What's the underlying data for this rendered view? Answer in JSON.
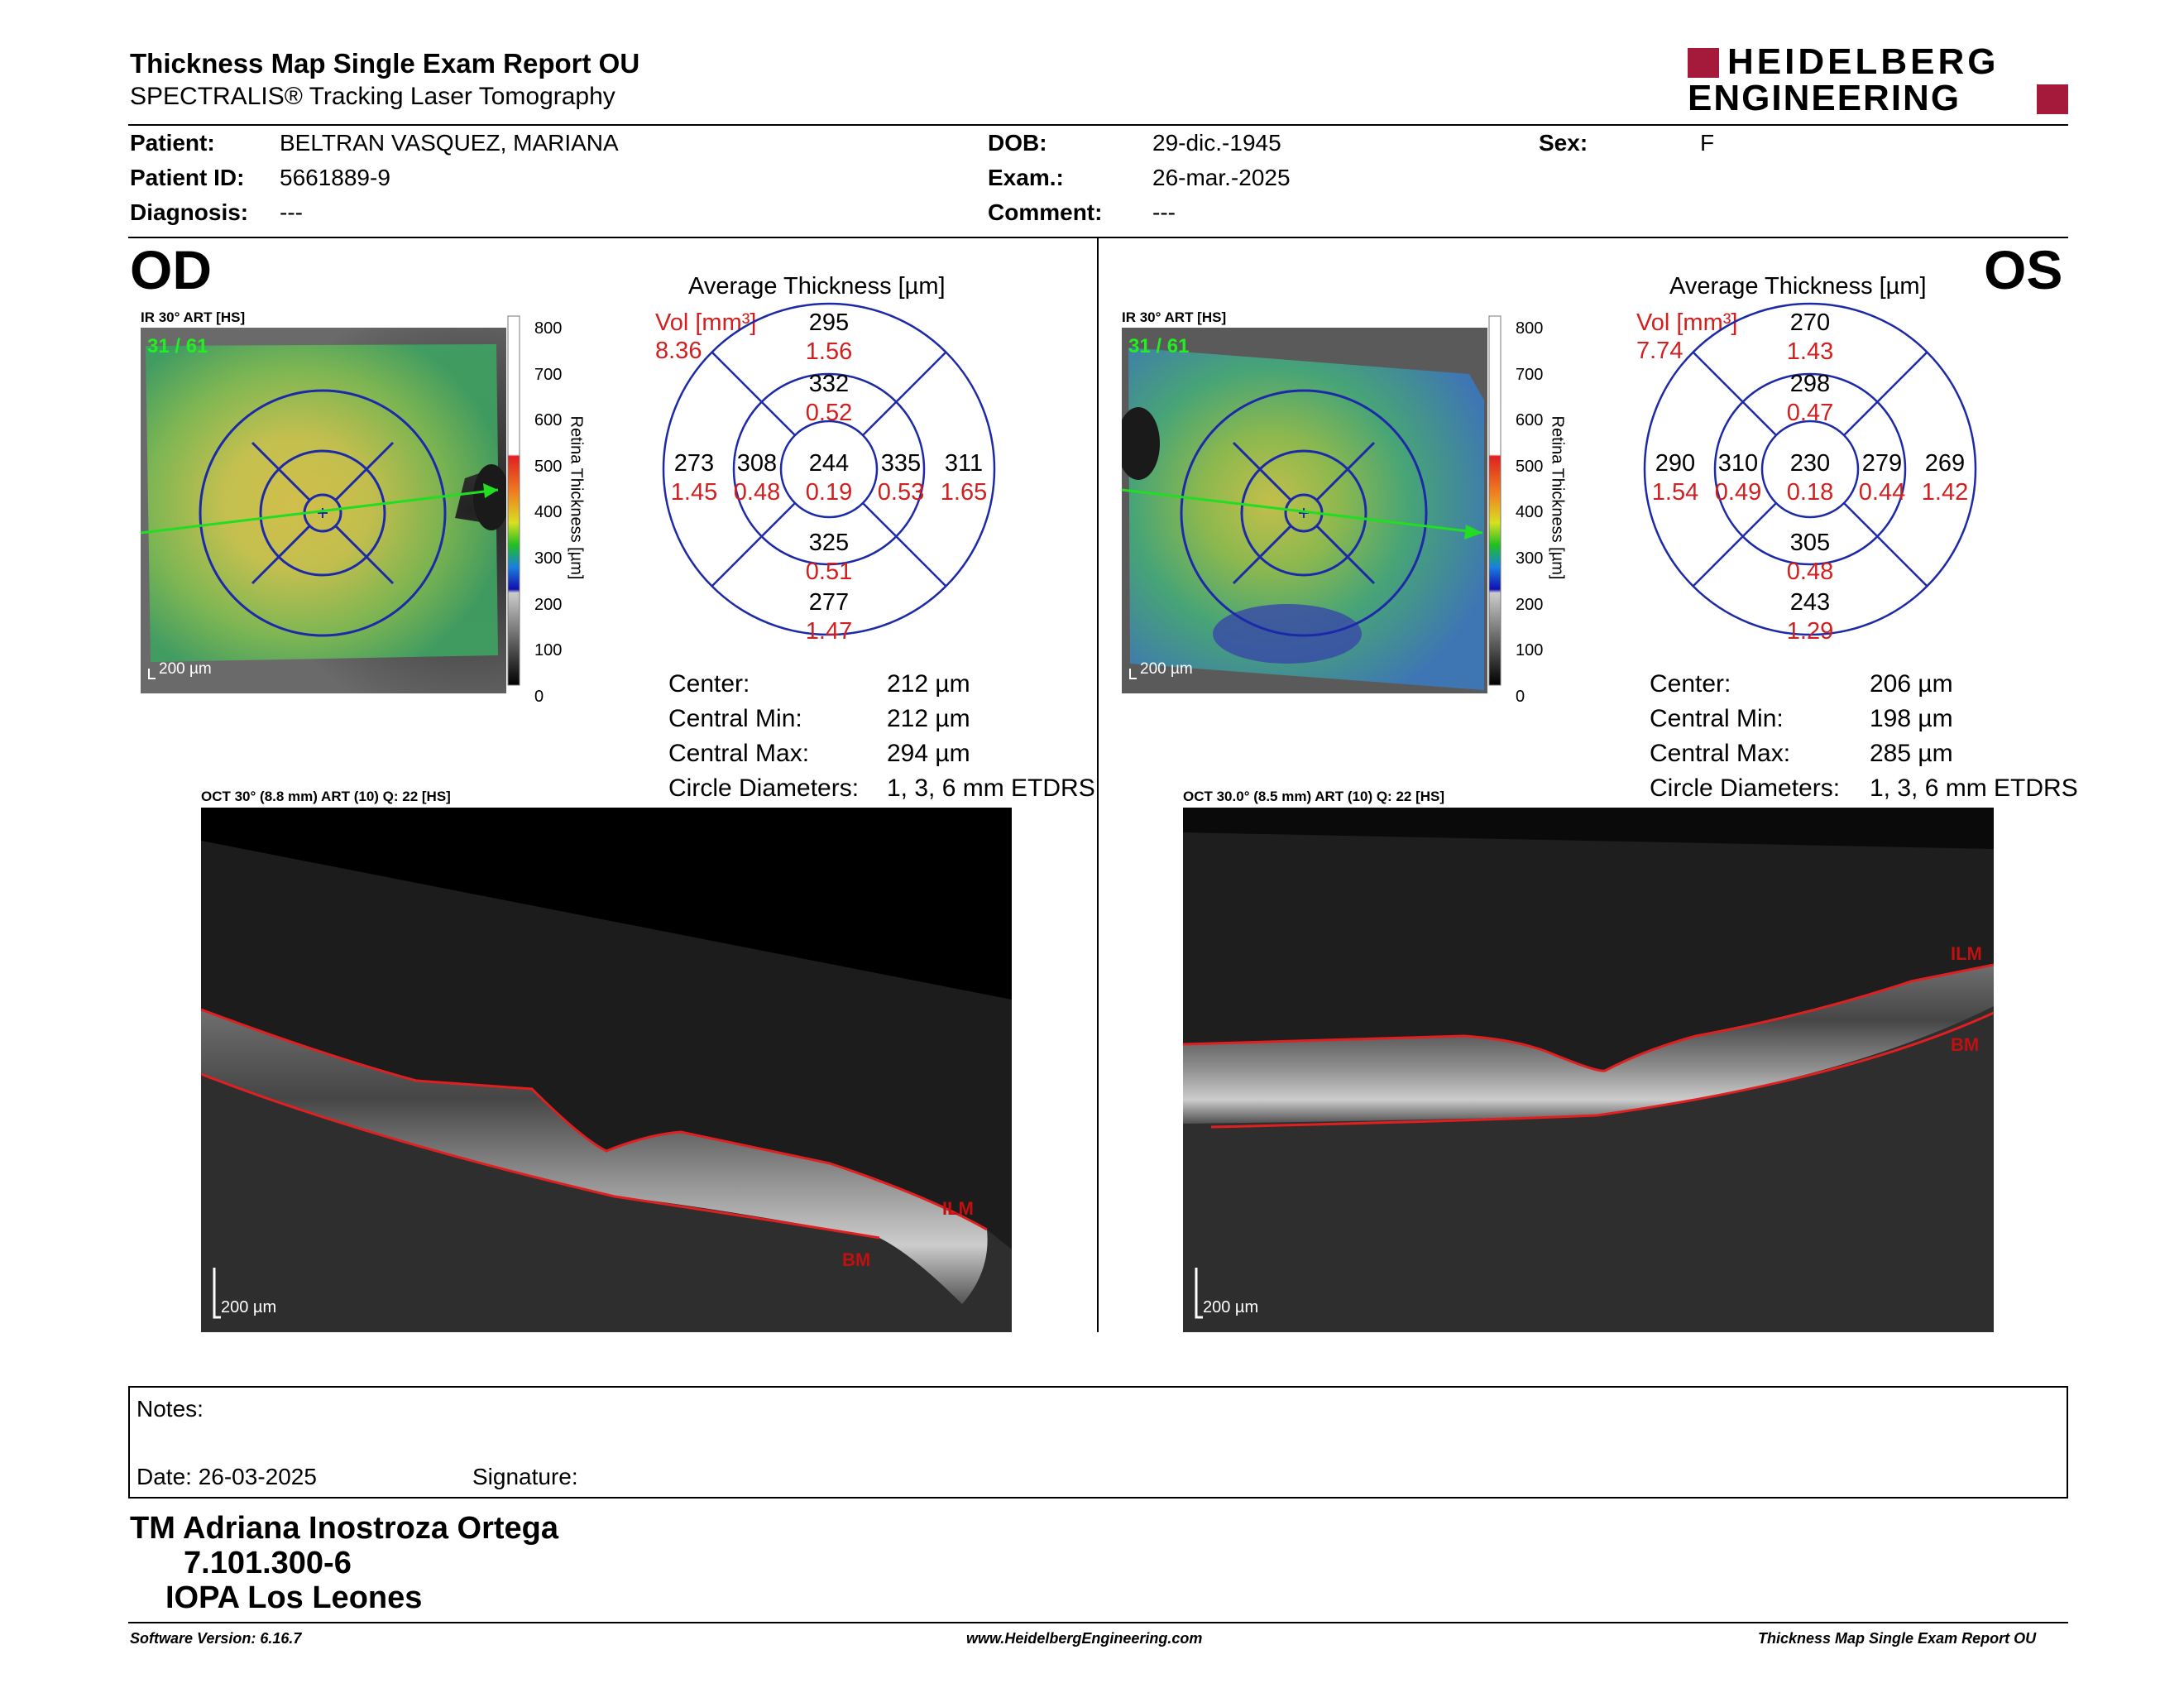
{
  "header": {
    "title": "Thickness Map Single Exam Report OU",
    "subtitle": "SPECTRALIS® Tracking Laser Tomography",
    "logo_line1": "HEIDELBERG",
    "logo_line2": "ENGINEERING",
    "brand_color": "#a5193a"
  },
  "patient": {
    "patient_label": "Patient:",
    "patient_value": "BELTRAN VASQUEZ, MARIANA",
    "dob_label": "DOB:",
    "dob_value": "29-dic.-1945",
    "sex_label": "Sex:",
    "sex_value": "F",
    "id_label": "Patient ID:",
    "id_value": "5661889-9",
    "exam_label": "Exam.:",
    "exam_value": "26-mar.-2025",
    "diag_label": "Diagnosis:",
    "diag_value": "---",
    "comment_label": "Comment:",
    "comment_value": "---"
  },
  "colorbar": {
    "ticks": [
      "800",
      "700",
      "600",
      "500",
      "400",
      "300",
      "200",
      "100",
      "0"
    ],
    "label": "Retina Thickness [µm]"
  },
  "od": {
    "eye": "OD",
    "ir_label": "IR 30° ART [HS]",
    "frame": "31 / 61",
    "scale": "200 µm",
    "avg_title": "Average Thickness [µm]",
    "vol_label": "Vol [mm³]",
    "vol_value": "8.36",
    "sectors": {
      "center_t": "244",
      "center_v": "0.19",
      "inner_sup_t": "332",
      "inner_sup_v": "0.52",
      "inner_inf_t": "325",
      "inner_inf_v": "0.51",
      "inner_left_t": "308",
      "inner_left_v": "0.48",
      "inner_right_t": "335",
      "inner_right_v": "0.53",
      "outer_sup_t": "295",
      "outer_sup_v": "1.56",
      "outer_inf_t": "277",
      "outer_inf_v": "1.47",
      "outer_left_t": "273",
      "outer_left_v": "1.45",
      "outer_right_t": "311",
      "outer_right_v": "1.65"
    },
    "stats": {
      "center_label": "Center:",
      "center_value": "212 µm",
      "min_label": "Central Min:",
      "min_value": "212 µm",
      "max_label": "Central Max:",
      "max_value": "294 µm",
      "diam_label": "Circle Diameters:",
      "diam_value": "1, 3, 6 mm ETDRS"
    },
    "oct_label": "OCT 30° (8.8 mm) ART (10) Q: 22 [HS]",
    "oct_scale": "200 µm",
    "ilm": "ILM",
    "bm": "BM"
  },
  "os": {
    "eye": "OS",
    "ir_label": "IR 30° ART [HS]",
    "frame": "31 / 61",
    "scale": "200 µm",
    "avg_title": "Average Thickness [µm]",
    "vol_label": "Vol [mm³]",
    "vol_value": "7.74",
    "sectors": {
      "center_t": "230",
      "center_v": "0.18",
      "inner_sup_t": "298",
      "inner_sup_v": "0.47",
      "inner_inf_t": "305",
      "inner_inf_v": "0.48",
      "inner_left_t": "310",
      "inner_left_v": "0.49",
      "inner_right_t": "279",
      "inner_right_v": "0.44",
      "outer_sup_t": "270",
      "outer_sup_v": "1.43",
      "outer_inf_t": "243",
      "outer_inf_v": "1.29",
      "outer_left_t": "290",
      "outer_left_v": "1.54",
      "outer_right_t": "269",
      "outer_right_v": "1.42"
    },
    "stats": {
      "center_label": "Center:",
      "center_value": "206 µm",
      "min_label": "Central Min:",
      "min_value": "198 µm",
      "max_label": "Central Max:",
      "max_value": "285 µm",
      "diam_label": "Circle Diameters:",
      "diam_value": "1, 3, 6 mm ETDRS"
    },
    "oct_label": "OCT 30.0° (8.5 mm) ART (10) Q: 22 [HS]",
    "oct_scale": "200 µm",
    "ilm": "ILM",
    "bm": "BM"
  },
  "notes": {
    "notes_label": "Notes:",
    "date_label": "Date: 26-03-2025",
    "signature_label": "Signature:"
  },
  "signer": {
    "line1": "TM Adriana Inostroza Ortega",
    "line2": "7.101.300-6",
    "line3": "IOPA Los Leones"
  },
  "footer": {
    "software": "Software Version: 6.16.7",
    "website": "www.HeidelbergEngineering.com",
    "report": "Thickness Map Single Exam Report OU"
  }
}
